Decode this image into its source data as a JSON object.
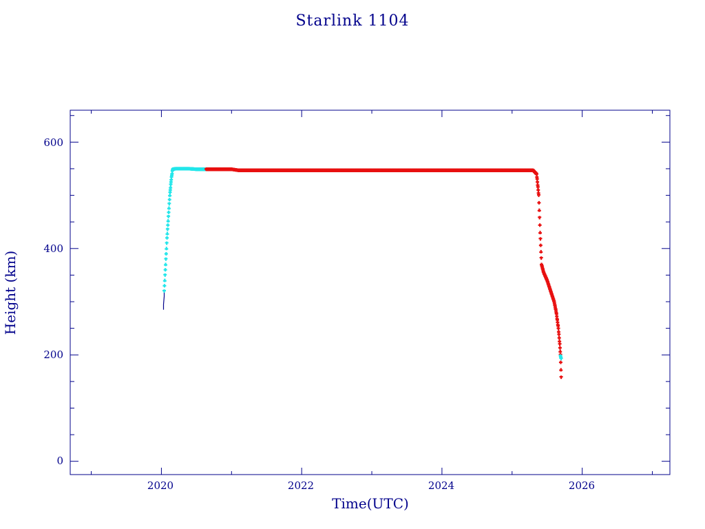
{
  "chart_data": {
    "type": "scatter",
    "title": "Starlink 1104",
    "xlabel": "Time(UTC)",
    "ylabel": "Height (km)",
    "xlim": [
      2018.7,
      2027.25
    ],
    "ylim": [
      -25,
      660
    ],
    "xticks": [
      2020,
      2022,
      2024,
      2026
    ],
    "xtick_labels": [
      "2020",
      "2022",
      "2024",
      "2026"
    ],
    "yticks": [
      0,
      200,
      400,
      600
    ],
    "ytick_labels": [
      "0",
      "200",
      "400",
      "600"
    ],
    "grid": false,
    "legend": false,
    "colors": {
      "frame": "#00008b",
      "text": "#00008b",
      "early": "#00008b",
      "cyan": "#22e6ea",
      "red": "#e81010"
    },
    "series": [
      {
        "color_key": "early",
        "style": "line",
        "x": [
          2020.03,
          2020.03,
          2020.04,
          2020.04
        ],
        "y": [
          285,
          295,
          310,
          320
        ]
      },
      {
        "color_key": "cyan",
        "style": "points",
        "x": [
          2020.04,
          2020.06,
          2020.08,
          2020.1,
          2020.12,
          2020.14,
          2020.16,
          2020.2,
          2020.3,
          2020.4,
          2020.5,
          2020.64
        ],
        "y": [
          320,
          370,
          420,
          460,
          500,
          530,
          549,
          550,
          550,
          550,
          549,
          549
        ]
      },
      {
        "color_key": "red",
        "style": "points",
        "x": [
          2020.64,
          2020.8,
          2021.0,
          2021.1,
          2021.2,
          2021.5,
          2022.0,
          2022.5,
          2023.0,
          2023.5,
          2024.0,
          2024.5,
          2025.0,
          2025.3,
          2025.35,
          2025.38,
          2025.4,
          2025.42,
          2025.45,
          2025.5,
          2025.55,
          2025.6,
          2025.63,
          2025.66,
          2025.68,
          2025.69,
          2025.7
        ],
        "y": [
          549,
          549,
          549,
          547,
          547,
          547,
          547,
          547,
          547,
          547,
          547,
          547,
          547,
          547,
          540,
          500,
          430,
          370,
          355,
          340,
          320,
          300,
          280,
          250,
          220,
          200,
          158
        ]
      },
      {
        "color_key": "cyan",
        "style": "points",
        "x": [
          2025.69,
          2025.7
        ],
        "y": [
          198,
          193
        ]
      }
    ]
  }
}
